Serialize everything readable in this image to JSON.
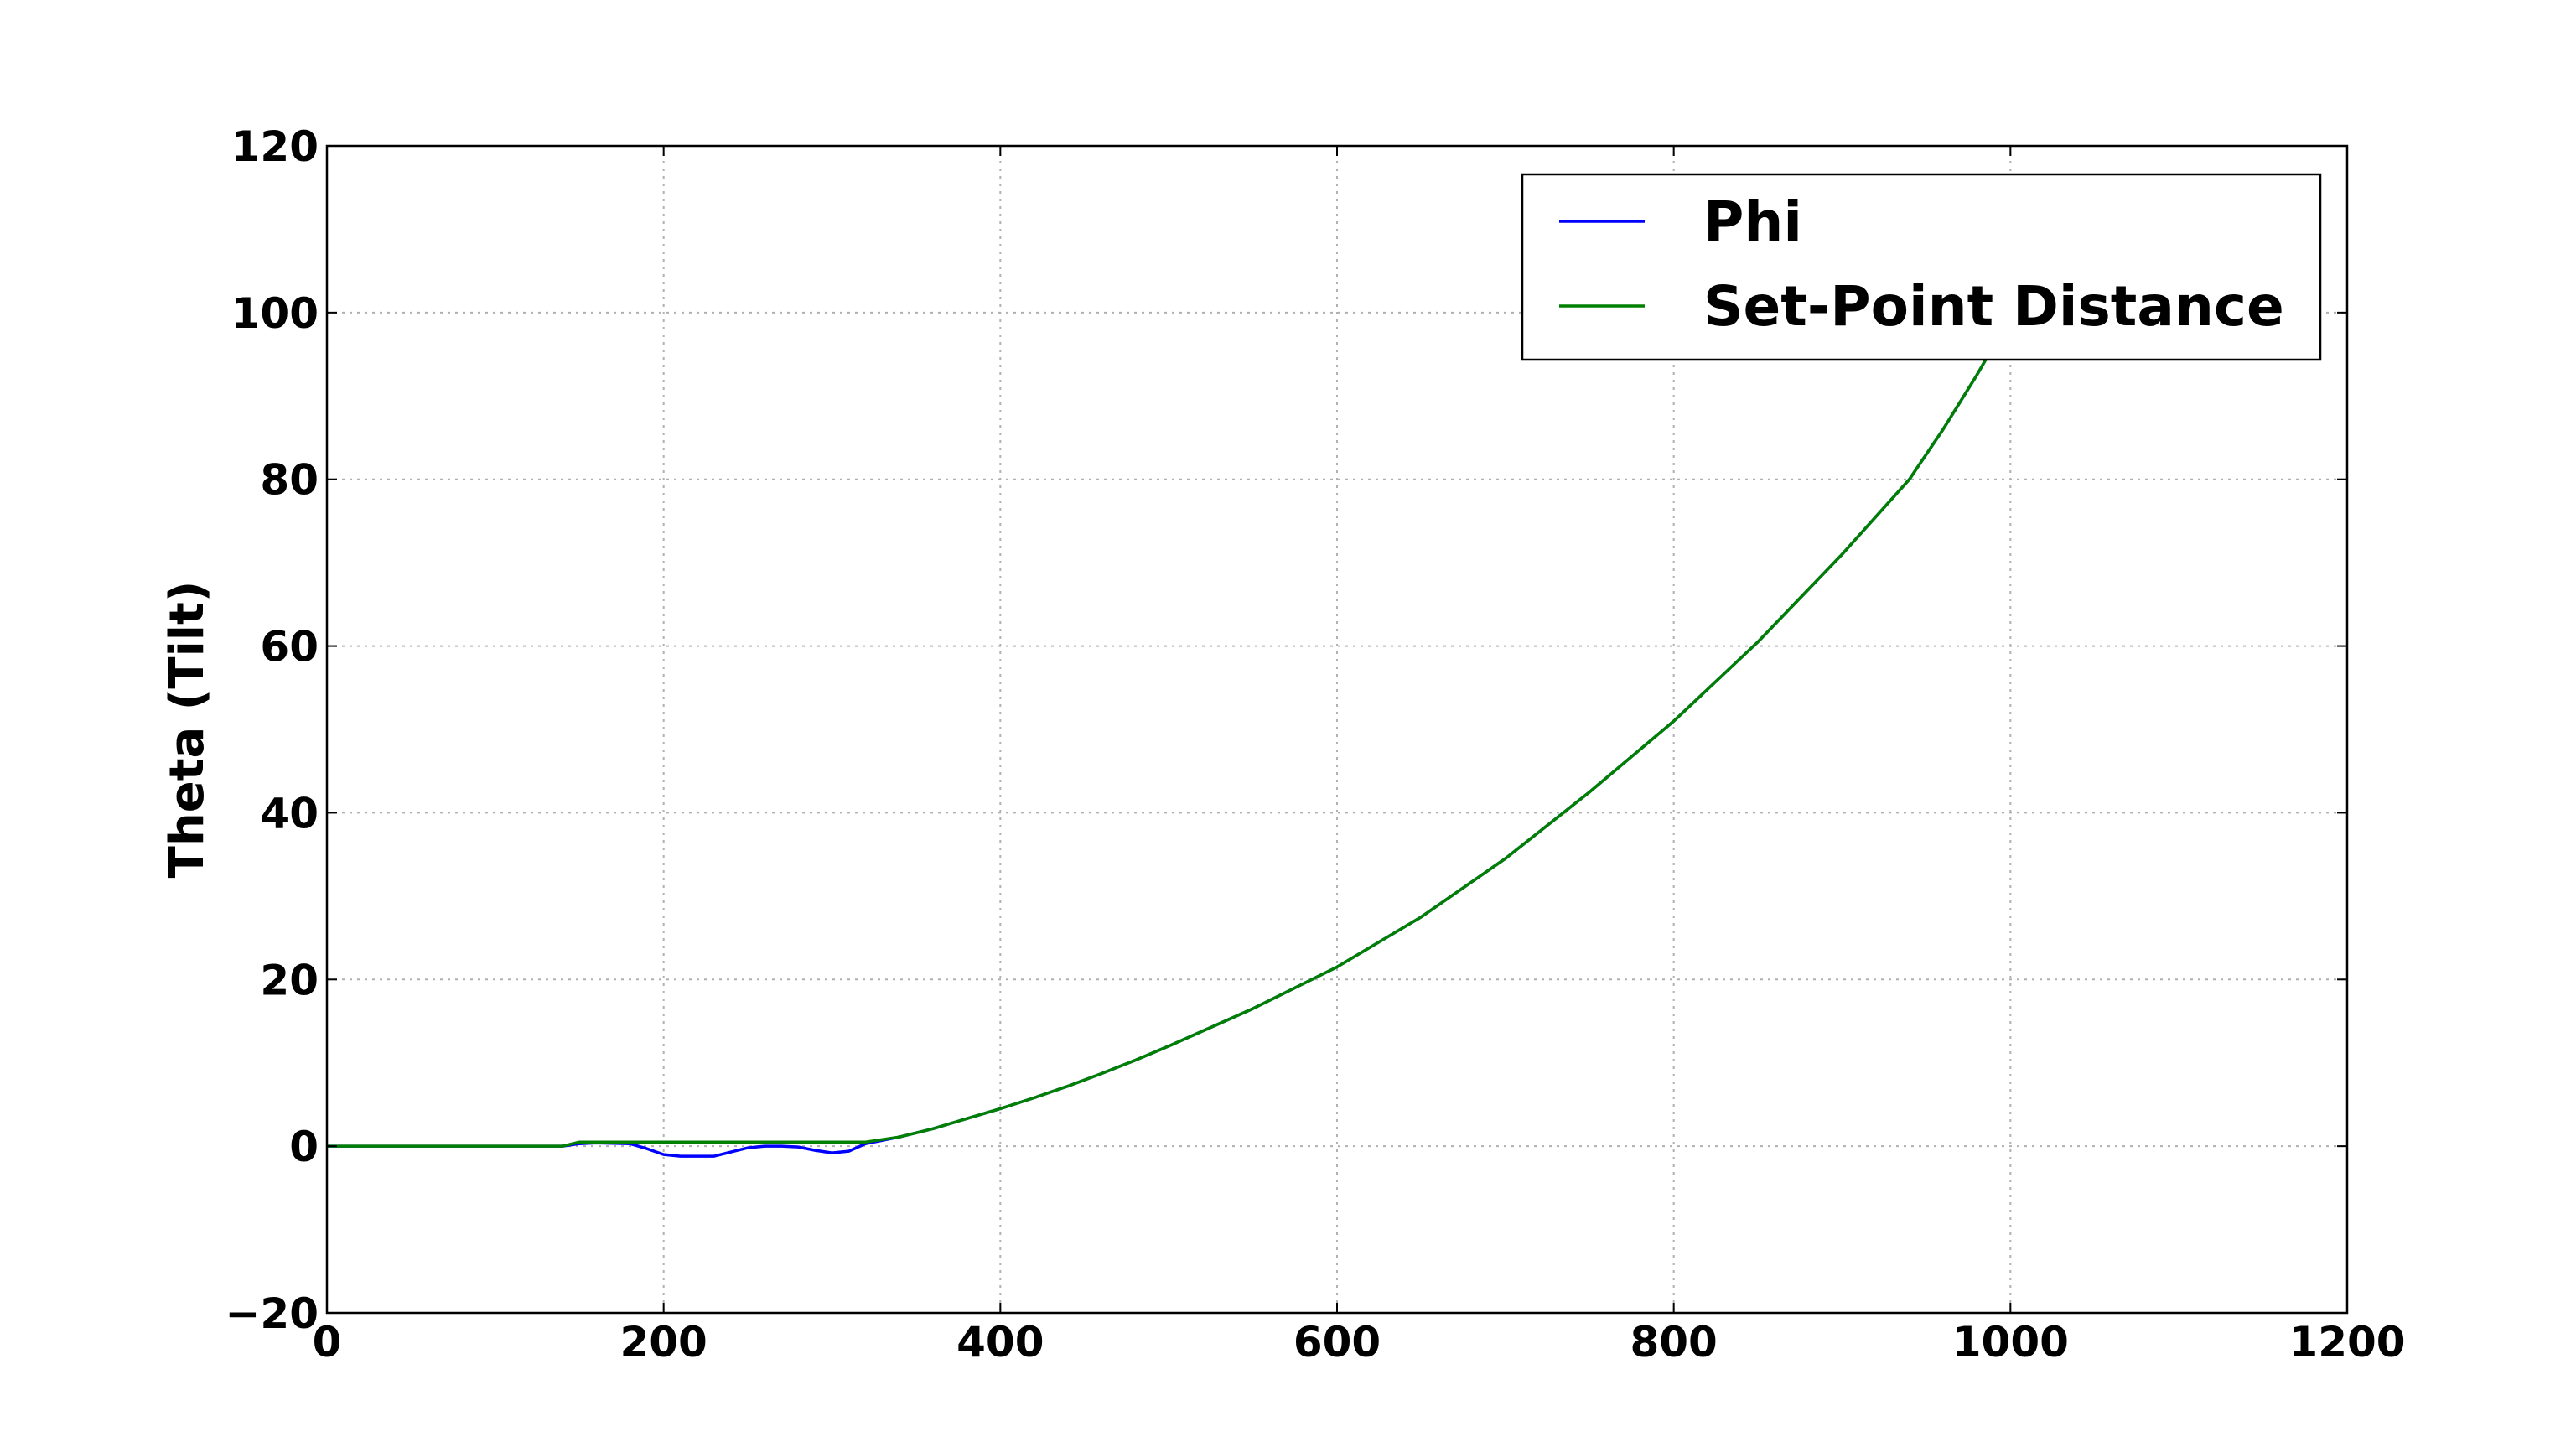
{
  "chart_data": {
    "type": "line",
    "title": "",
    "xlabel": "",
    "ylabel": "Theta (Tilt)",
    "xlim": [
      0,
      1200
    ],
    "ylim": [
      -20,
      120
    ],
    "xticks": [
      0,
      200,
      400,
      600,
      800,
      1000,
      1200
    ],
    "yticks": [
      -20,
      0,
      20,
      40,
      60,
      80,
      100,
      120
    ],
    "xtick_labels": [
      "0",
      "200",
      "400",
      "600",
      "800",
      "1000",
      "1200"
    ],
    "ytick_labels": [
      "−20",
      "0",
      "20",
      "40",
      "60",
      "80",
      "100",
      "120"
    ],
    "grid": true,
    "legend_position": "top-right",
    "series": [
      {
        "name": "Phi",
        "color": "#0000ff",
        "x": [
          0,
          140,
          150,
          160,
          180,
          190,
          200,
          210,
          230,
          240,
          250,
          260,
          270,
          280,
          290,
          300,
          310,
          320,
          330,
          340,
          360,
          380,
          400,
          420,
          440,
          460,
          480,
          500,
          550,
          600,
          650,
          700,
          750,
          800,
          850,
          900,
          940,
          960,
          980,
          990
        ],
        "y": [
          0,
          0,
          0.3,
          0.4,
          0.3,
          -0.3,
          -1.0,
          -1.2,
          -1.2,
          -0.7,
          -0.2,
          0,
          0,
          -0.1,
          -0.5,
          -0.8,
          -0.6,
          0.3,
          0.7,
          1.1,
          2.1,
          3.3,
          4.5,
          5.8,
          7.2,
          8.7,
          10.3,
          12.0,
          16.5,
          21.5,
          27.5,
          34.5,
          42.5,
          51.0,
          60.5,
          71.0,
          80.0,
          86.0,
          92.5,
          96.0
        ]
      },
      {
        "name": "Set-Point Distance",
        "color": "#008000",
        "x": [
          0,
          140,
          150,
          320,
          330,
          340,
          360,
          380,
          400,
          420,
          440,
          460,
          480,
          500,
          550,
          600,
          650,
          700,
          750,
          800,
          850,
          900,
          940,
          960,
          980,
          990
        ],
        "y": [
          0,
          0,
          0.5,
          0.5,
          0.8,
          1.1,
          2.1,
          3.3,
          4.5,
          5.8,
          7.2,
          8.7,
          10.3,
          12.0,
          16.5,
          21.5,
          27.5,
          34.5,
          42.5,
          51.0,
          60.5,
          71.0,
          80.0,
          86.0,
          92.5,
          96.0
        ]
      }
    ]
  }
}
